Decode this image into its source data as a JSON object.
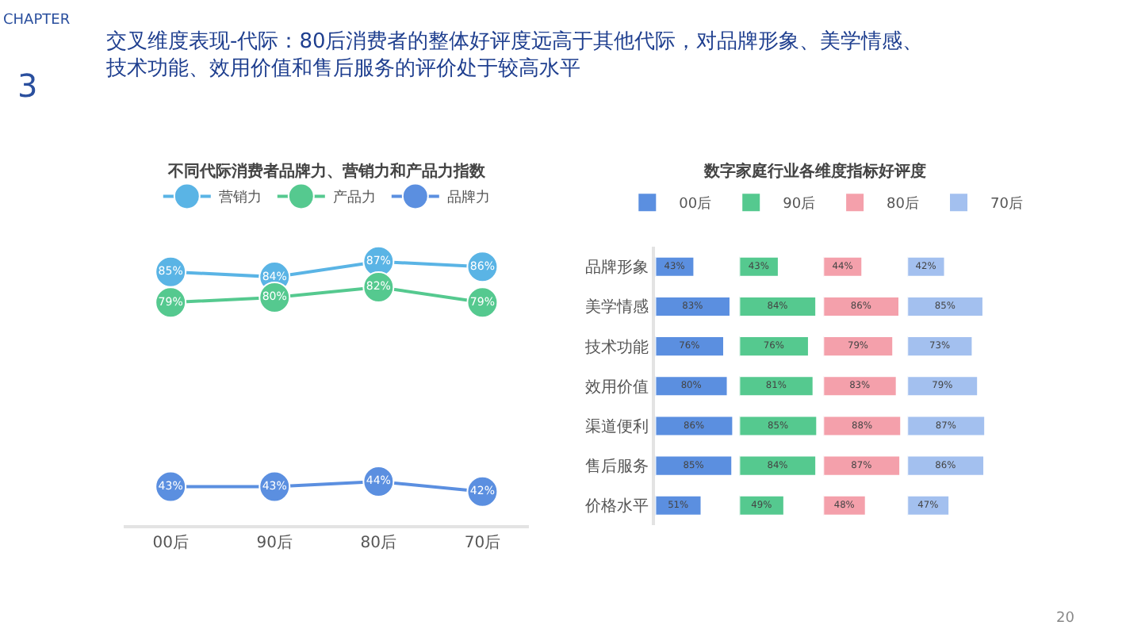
{
  "chart_data": [
    {
      "type": "line",
      "title": "不同代际消费者品牌力、营销力和产品力指数",
      "categories": [
        "00后",
        "90后",
        "80后",
        "70后"
      ],
      "marker": "circle",
      "legend": "top",
      "tick_labels": "x",
      "series": [
        {
          "name": "营销力",
          "color": "#5ab4e5",
          "values": [
            85,
            84,
            87,
            86
          ],
          "value_labels": [
            "85%",
            "84%",
            "87%",
            "86%"
          ]
        },
        {
          "name": "产品力",
          "color": "#55c98f",
          "values": [
            79,
            80,
            82,
            79
          ],
          "value_labels": [
            "79%",
            "80%",
            "82%",
            "79%"
          ]
        },
        {
          "name": "品牌力",
          "color": "#5b8fe0",
          "values": [
            43,
            43,
            44,
            42
          ],
          "value_labels": [
            "43%",
            "43%",
            "44%",
            "42%"
          ]
        }
      ]
    },
    {
      "type": "bar",
      "orientation": "horizontal",
      "title": "数字家庭行业各维度指标好评度",
      "categories": [
        "品牌形象",
        "美学情感",
        "技术功能",
        "效用价值",
        "渠道便利",
        "售后服务",
        "价格水平"
      ],
      "legend": "top",
      "tick_labels": "y",
      "series": [
        {
          "name": "00后",
          "color": "#5b8fe0",
          "values": [
            43,
            83,
            76,
            80,
            86,
            85,
            51
          ],
          "value_labels": [
            "43%",
            "83%",
            "76%",
            "80%",
            "86%",
            "85%",
            "51%"
          ]
        }
      ]
    },
    {
      "type": "bar",
      "orientation": "horizontal",
      "categories": [
        null,
        null,
        null,
        null,
        null,
        null,
        null
      ],
      "legend": "top",
      "tick_labels": "y",
      "series": [
        {
          "name": "90后",
          "color": "#55c98f",
          "values": [
            43,
            84,
            76,
            81,
            85,
            84,
            49
          ],
          "value_labels": [
            "43%",
            "84%",
            "76%",
            "81%",
            "85%",
            "84%",
            "49%"
          ]
        }
      ]
    },
    {
      "type": "bar",
      "orientation": "horizontal",
      "categories": [
        null,
        null,
        null,
        null,
        null,
        null,
        null
      ],
      "legend": "top",
      "tick_labels": "y",
      "series": [
        {
          "name": "80后",
          "color": "#f4a0ab",
          "values": [
            44,
            86,
            79,
            83,
            88,
            87,
            48
          ],
          "value_labels": [
            "44%",
            "86%",
            "79%",
            "83%",
            "88%",
            "87%",
            "48%"
          ]
        }
      ]
    },
    {
      "type": "bar",
      "orientation": "horizontal",
      "categories": [
        null,
        null,
        null,
        null,
        null,
        null,
        null
      ],
      "legend": "top",
      "tick_labels": "y",
      "series": [
        {
          "name": "70后",
          "color": "#a3c0ef",
          "values": [
            42,
            85,
            73,
            79,
            87,
            86,
            47
          ],
          "value_labels": [
            "42%",
            "85%",
            "73%",
            "79%",
            "87%",
            "86%",
            "47%"
          ]
        }
      ]
    },
    {
      "type": "other",
      "title": "交叉维度表现-代际：80后消费者的整体好评度远高于其他代际，对品牌形象、美学情感、技术功能、效用价值和售后服务的评价处于较高水平",
      "annotations": [
        "CHAPTER",
        "3",
        "20"
      ]
    }
  ]
}
